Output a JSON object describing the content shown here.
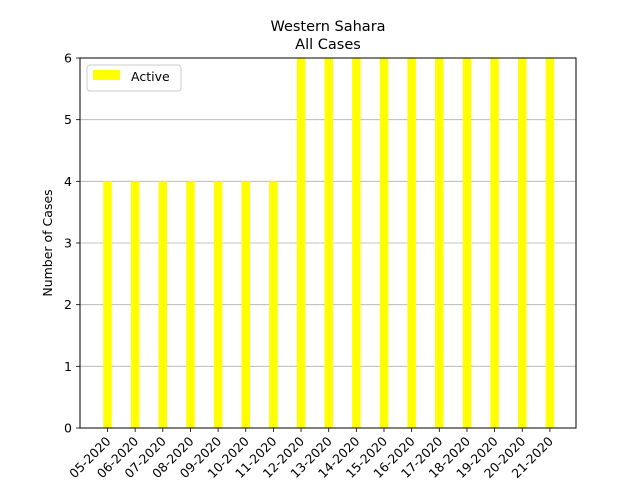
{
  "chart_data": {
    "type": "bar",
    "title": "Western Sahara",
    "subtitle": "All Cases",
    "xlabel": "",
    "ylabel": "Number of Cases",
    "ylim": [
      0,
      6
    ],
    "yticks": [
      "0",
      "1",
      "2",
      "3",
      "4",
      "5",
      "6"
    ],
    "grid": "y",
    "legend_position": "top-left",
    "categories": [
      "05-2020",
      "06-2020",
      "07-2020",
      "08-2020",
      "09-2020",
      "10-2020",
      "11-2020",
      "12-2020",
      "13-2020",
      "14-2020",
      "15-2020",
      "16-2020",
      "17-2020",
      "18-2020",
      "19-2020",
      "20-2020",
      "21-2020"
    ],
    "series": [
      {
        "name": "Active",
        "color": "#ffff00",
        "values": [
          4,
          4,
          4,
          4,
          4,
          4,
          4,
          6,
          6,
          6,
          6,
          6,
          6,
          6,
          6,
          6,
          6
        ]
      }
    ]
  }
}
